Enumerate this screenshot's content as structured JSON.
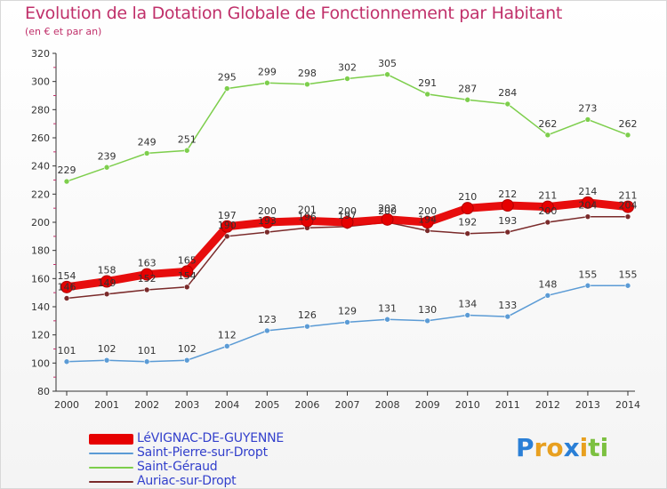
{
  "header": {
    "title": "Evolution de la Dotation Globale de Fonctionnement par Habitant",
    "subtitle": "(en € et par an)"
  },
  "colors": {
    "title": "#c0306a",
    "legend_text": "#3340cc",
    "axis": "#333333",
    "tick_marks": "#c0306a",
    "grid": "#dddddd"
  },
  "logo": {
    "letters": [
      "P",
      "r",
      "o",
      "x",
      "i",
      "t",
      "i"
    ],
    "colors": [
      "#2a7fd6",
      "#e8a020",
      "#e8a020",
      "#2a7fd6",
      "#e8a020",
      "#7cc040",
      "#7cc040"
    ]
  },
  "chart_data": {
    "type": "line",
    "x": [
      "2000",
      "2001",
      "2002",
      "2003",
      "2004",
      "2005",
      "2006",
      "2007",
      "2008",
      "2009",
      "2010",
      "2011",
      "2012",
      "2013",
      "2014"
    ],
    "ylim": [
      80,
      320
    ],
    "yticks": [
      80,
      100,
      120,
      140,
      160,
      180,
      200,
      220,
      240,
      260,
      280,
      300,
      320
    ],
    "grid": false,
    "legend_position": "bottom-left",
    "series": [
      {
        "name": "LéVIGNAC-DE-GUYENNE",
        "color": "#e60000",
        "values": [
          154,
          158,
          163,
          165,
          197,
          200,
          201,
          200,
          202,
          200,
          210,
          212,
          211,
          214,
          211
        ],
        "labels": [
          "154",
          "158",
          "163",
          "165",
          "197",
          "200",
          "201",
          "200",
          "202",
          "200",
          "210",
          "212",
          "211",
          "214",
          "211"
        ],
        "emphasis": true
      },
      {
        "name": "Saint-Pierre-sur-Dropt",
        "color": "#5b9bd5",
        "values": [
          101,
          102,
          101,
          102,
          112,
          123,
          126,
          129,
          131,
          130,
          134,
          133,
          148,
          155,
          155
        ],
        "labels": [
          "101",
          "102",
          "101",
          "102",
          "112",
          "123",
          "126",
          "129",
          "131",
          "130",
          "134",
          "133",
          "148",
          "155",
          "155"
        ]
      },
      {
        "name": "Saint-Géraud",
        "color": "#7dce4c",
        "values": [
          229,
          239,
          249,
          251,
          295,
          299,
          298,
          302,
          305,
          291,
          287,
          284,
          262,
          273,
          262
        ],
        "labels": [
          "229",
          "239",
          "249",
          "251",
          "295",
          "299",
          "298",
          "302",
          "305",
          "291",
          "287",
          "284",
          "262",
          "273",
          "262"
        ]
      },
      {
        "name": "Auriac-sur-Dropt",
        "color": "#7a2a2a",
        "values": [
          146,
          149,
          152,
          154,
          190,
          193,
          196,
          197,
          200,
          194,
          192,
          193,
          200,
          204,
          204
        ],
        "labels": [
          "146",
          "149",
          "152",
          "154",
          "190",
          "193",
          "196",
          "197",
          "200",
          "194",
          "192",
          "193",
          "200",
          "204",
          "204"
        ]
      }
    ]
  }
}
